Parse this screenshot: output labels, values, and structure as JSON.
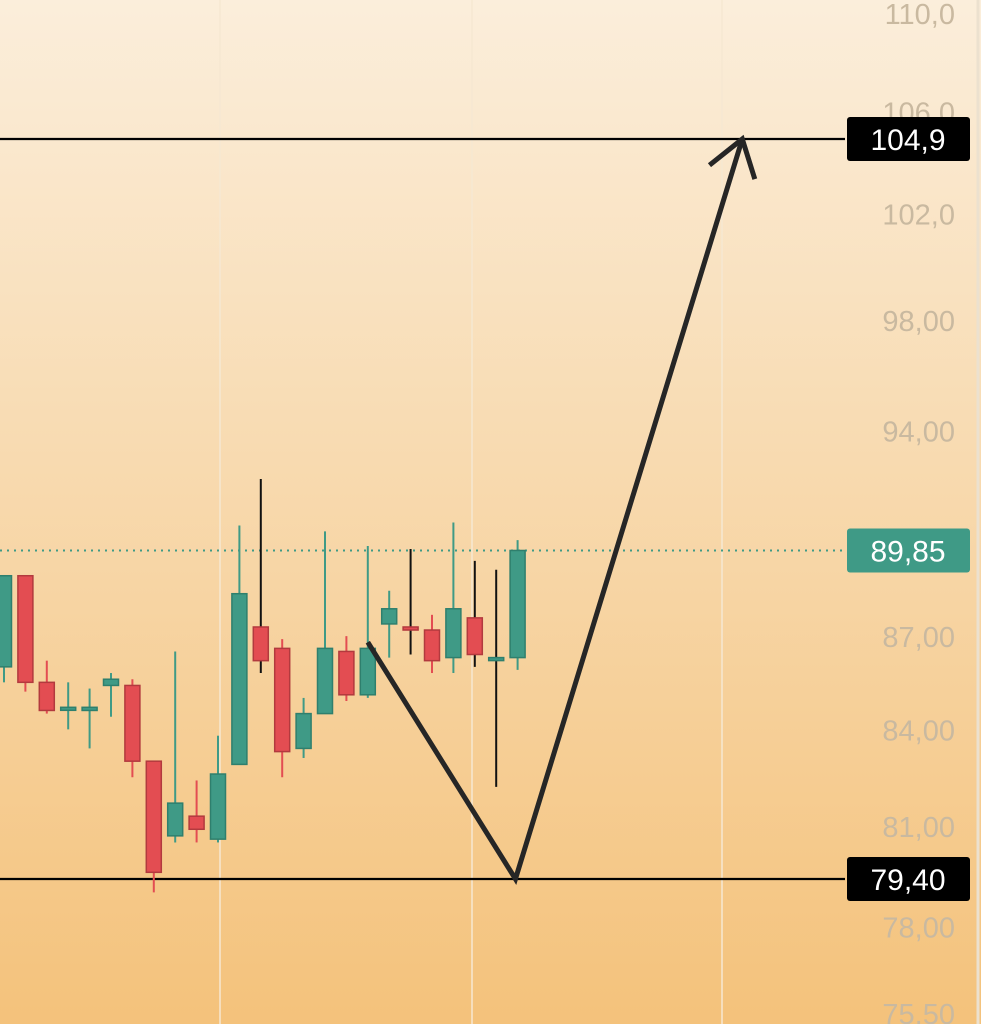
{
  "chart_data": {
    "type": "candlestick",
    "y_axis": {
      "tick_labels": [
        "110,0",
        "106,0",
        "102,0",
        "98,00",
        "94,00",
        "87,00",
        "84,00",
        "81,00",
        "78,00",
        "75,50"
      ],
      "tick_values": [
        110.0,
        106.0,
        102.0,
        98.0,
        94.0,
        87.0,
        84.0,
        81.0,
        78.0,
        75.5
      ],
      "scale": "log",
      "position": "right"
    },
    "price_tags": [
      {
        "label": "104,9",
        "value": 104.9,
        "style": "horizontal-line",
        "color": "#000000"
      },
      {
        "label": "89,85",
        "value": 89.85,
        "style": "dotted-line",
        "color": "#3f9a86"
      },
      {
        "label": "79,40",
        "value": 79.4,
        "style": "horizontal-line",
        "color": "#000000"
      }
    ],
    "candles": [
      {
        "open": 86.0,
        "high": 89.0,
        "low": 85.5,
        "close": 89.0
      },
      {
        "open": 89.0,
        "high": 89.0,
        "low": 85.2,
        "close": 85.5
      },
      {
        "open": 85.5,
        "high": 86.2,
        "low": 84.5,
        "close": 84.6
      },
      {
        "open": 84.7,
        "high": 85.5,
        "low": 84.0,
        "close": 84.7
      },
      {
        "open": 84.6,
        "high": 85.3,
        "low": 83.4,
        "close": 84.7
      },
      {
        "open": 85.4,
        "high": 85.8,
        "low": 84.4,
        "close": 85.6
      },
      {
        "open": 85.4,
        "high": 85.6,
        "low": 82.5,
        "close": 83.0
      },
      {
        "open": 83.0,
        "high": 83.0,
        "low": 79.0,
        "close": 79.6
      },
      {
        "open": 80.7,
        "high": 86.5,
        "low": 80.5,
        "close": 81.7
      },
      {
        "open": 81.3,
        "high": 82.4,
        "low": 80.5,
        "close": 80.9
      },
      {
        "open": 80.6,
        "high": 83.8,
        "low": 80.5,
        "close": 82.6
      },
      {
        "open": 82.9,
        "high": 90.7,
        "low": 82.9,
        "close": 88.4
      },
      {
        "open": 87.3,
        "high": 92.3,
        "low": 85.8,
        "close": 86.2
      },
      {
        "open": 86.6,
        "high": 86.9,
        "low": 82.5,
        "close": 83.3
      },
      {
        "open": 83.4,
        "high": 85.0,
        "low": 83.1,
        "close": 84.5
      },
      {
        "open": 84.5,
        "high": 90.5,
        "low": 84.5,
        "close": 86.6
      },
      {
        "open": 86.5,
        "high": 87.0,
        "low": 84.9,
        "close": 85.1
      },
      {
        "open": 85.1,
        "high": 90.0,
        "low": 85.0,
        "close": 86.6
      },
      {
        "open": 87.4,
        "high": 88.5,
        "low": 86.3,
        "close": 87.9
      },
      {
        "open": 87.3,
        "high": 89.9,
        "low": 86.4,
        "close": 87.2
      },
      {
        "open": 87.2,
        "high": 87.7,
        "low": 85.8,
        "close": 86.2
      },
      {
        "open": 86.3,
        "high": 90.8,
        "low": 85.8,
        "close": 87.9
      },
      {
        "open": 87.6,
        "high": 89.5,
        "low": 86.0,
        "close": 86.4
      },
      {
        "open": 86.3,
        "high": 89.2,
        "low": 82.2,
        "close": 86.3
      },
      {
        "open": 86.3,
        "high": 90.2,
        "low": 85.9,
        "close": 89.85
      }
    ],
    "projection_path": [
      {
        "candle_index": 17,
        "value": 86.8
      },
      {
        "candle_index": 23.9,
        "value": 79.4
      },
      {
        "candle_index": 34.5,
        "value": 104.9
      }
    ],
    "colors": {
      "up": "#3f9a86",
      "down": "#e34d52",
      "background_top": "#fbeedb",
      "background_bottom": "#f4c27b",
      "grid": "#f6e8d2",
      "line": "#000000",
      "projection": "#262626"
    },
    "grid": true,
    "legend": "none"
  }
}
